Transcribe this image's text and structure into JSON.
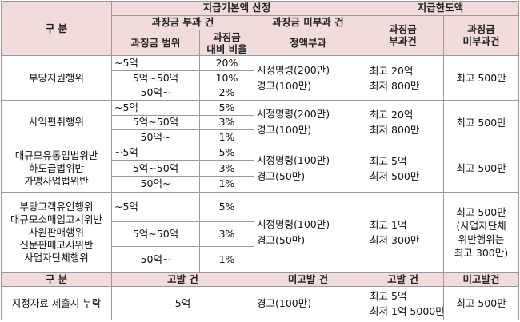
{
  "header": {
    "category": "구  분",
    "base_amount": "지급기본액 산정",
    "limit": "지급한도액",
    "taxed_case": "과징금 부과 건",
    "untaxed_case": "과징금 미부과 건",
    "penalty_range": "과징금 범위",
    "penalty_ratio": [
      "과징금",
      "대비 비율"
    ],
    "fixed_amount": "정액부과",
    "limit_taxed": [
      "과징금",
      "부과건"
    ],
    "limit_untaxed": [
      "과징금",
      "미부과건"
    ]
  },
  "groups": [
    {
      "name": [
        "부당지원행위"
      ],
      "ranges": [
        {
          "range": "~5억",
          "ratio": "20%"
        },
        {
          "range": "5억~50억",
          "ratio": "10%"
        },
        {
          "range": "50억~",
          "ratio": "2%"
        }
      ],
      "fixed": [
        "시정명령(200만)",
        "경고(100만)"
      ],
      "limit_taxed": [
        "최고 20억",
        "최저 800만"
      ],
      "limit_untaxed": [
        "최고 500만"
      ]
    },
    {
      "name": [
        "사익편취행위"
      ],
      "ranges": [
        {
          "range": "~5억",
          "ratio": "5%"
        },
        {
          "range": "5억~50억",
          "ratio": "3%"
        },
        {
          "range": "50억~",
          "ratio": "1%"
        }
      ],
      "fixed": [
        "시정명령(200만)",
        "경고(100만)"
      ],
      "limit_taxed": [
        "최고 20억",
        "최저 800만"
      ],
      "limit_untaxed": [
        "최고 500만"
      ]
    },
    {
      "name": [
        "대규모유통업법위반",
        "하도급법위반",
        "가맹사업법위반"
      ],
      "ranges": [
        {
          "range": "~5억",
          "ratio": "5%"
        },
        {
          "range": "5억~50억",
          "ratio": "3%"
        },
        {
          "range": "50억~",
          "ratio": "1%"
        }
      ],
      "fixed": [
        "시정명령(100만)",
        "경고(50만)"
      ],
      "limit_taxed": [
        "최고 5억",
        "최저 500만"
      ],
      "limit_untaxed": [
        "최고 500만"
      ]
    },
    {
      "name": [
        "부당고객유인행위",
        "대규모소매업고시위반",
        "사원판매행위",
        "신문판매고시위반",
        "사업자단체행위"
      ],
      "ranges": [
        {
          "range": "~5억",
          "ratio": "5%"
        },
        {
          "range": "5억~50억",
          "ratio": "3%"
        },
        {
          "range": "50억~",
          "ratio": "1%"
        }
      ],
      "fixed": [
        "시정명령(100만)",
        "경고(50만)"
      ],
      "limit_taxed": [
        "최고 1억",
        "최저 300만"
      ],
      "limit_untaxed": [
        "최고 500만",
        "(사업자단체",
        "위반행위는",
        "최고 300만)"
      ]
    }
  ],
  "bottom_header": {
    "category": "구  분",
    "accused_case": "고발 건",
    "unaccused_case": "미고발 건",
    "accused_limit": "고발 건",
    "unaccused_limit": "미고발건"
  },
  "bottom_row": {
    "name": "지정자료 제출시 누락",
    "accused": "5억",
    "unaccused": "경고(100만)",
    "accused_limit": [
      "최고 5억",
      "최저 1억 5000만"
    ],
    "unaccused_limit": "최고 500만"
  }
}
